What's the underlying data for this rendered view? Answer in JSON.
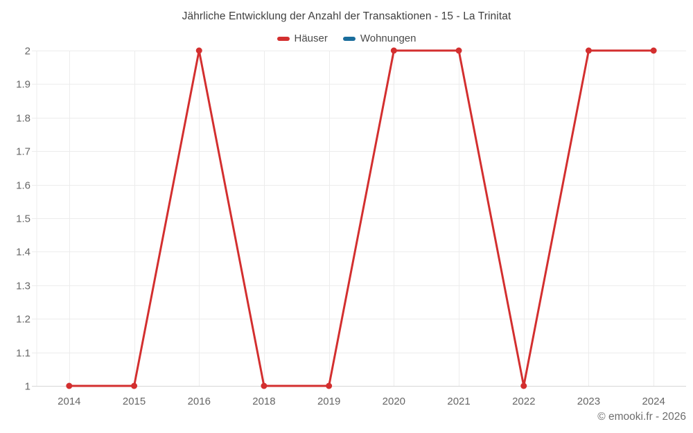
{
  "chart": {
    "title": "Jährliche Entwicklung der Anzahl der Transaktionen - 15 - La Trinitat",
    "watermark": "© emooki.fr - 2026"
  },
  "chart_data": {
    "type": "line",
    "title": "Jährliche Entwicklung der Anzahl der Transaktionen - 15 - La Trinitat",
    "categories": [
      "2014",
      "2015",
      "2016",
      "2018",
      "2019",
      "2020",
      "2021",
      "2022",
      "2023",
      "2024"
    ],
    "series": [
      {
        "name": "Häuser",
        "color": "#d32f2f",
        "values": [
          1,
          1,
          2,
          1,
          1,
          2,
          2,
          1,
          2,
          2
        ]
      },
      {
        "name": "Wohnungen",
        "color": "#1a6d9c",
        "values": []
      }
    ],
    "xlabel": "",
    "ylabel": "",
    "ylim": [
      1,
      2
    ],
    "ytick_step": 0.1,
    "grid": true,
    "legend_position": "top",
    "grid_color": "#ececec",
    "axis_line_color": "#d6d6d6"
  }
}
